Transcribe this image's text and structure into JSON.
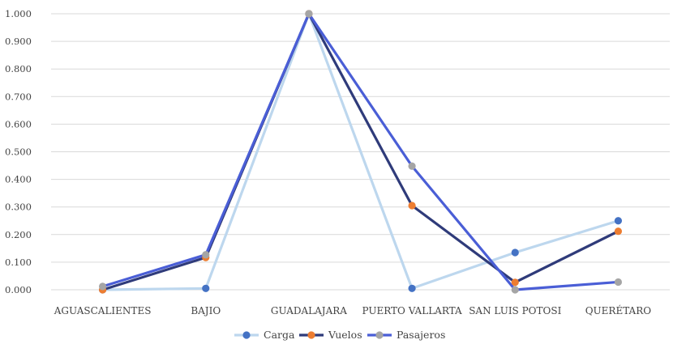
{
  "chart_data": {
    "type": "line",
    "categories": [
      "AGUASCALIENTES",
      "BAJIO",
      "GUADALAJARA",
      "PUERTO VALLARTA",
      "SAN LUIS POTOSI",
      "QUERÉTARO"
    ],
    "ylim": [
      0,
      1
    ],
    "yticks": [
      "0.000",
      "0.100",
      "0.200",
      "0.300",
      "0.400",
      "0.500",
      "0.600",
      "0.700",
      "0.800",
      "0.900",
      "1.000"
    ],
    "grid": true,
    "legend": "bottom",
    "series": [
      {
        "name": "Carga",
        "values": [
          0.0,
          0.005,
          1.0,
          0.005,
          0.135,
          0.25
        ],
        "line_color": "#bdd7ee",
        "marker_color": "#4472c4"
      },
      {
        "name": "Vuelos",
        "values": [
          0.0,
          0.117,
          1.0,
          0.305,
          0.027,
          0.212
        ],
        "line_color": "#2f3b7a",
        "marker_color": "#ed7d31"
      },
      {
        "name": "Pasajeros",
        "values": [
          0.012,
          0.127,
          1.0,
          0.448,
          0.0,
          0.028
        ],
        "line_color": "#4a5ed6",
        "marker_color": "#a5a5a5"
      }
    ]
  }
}
